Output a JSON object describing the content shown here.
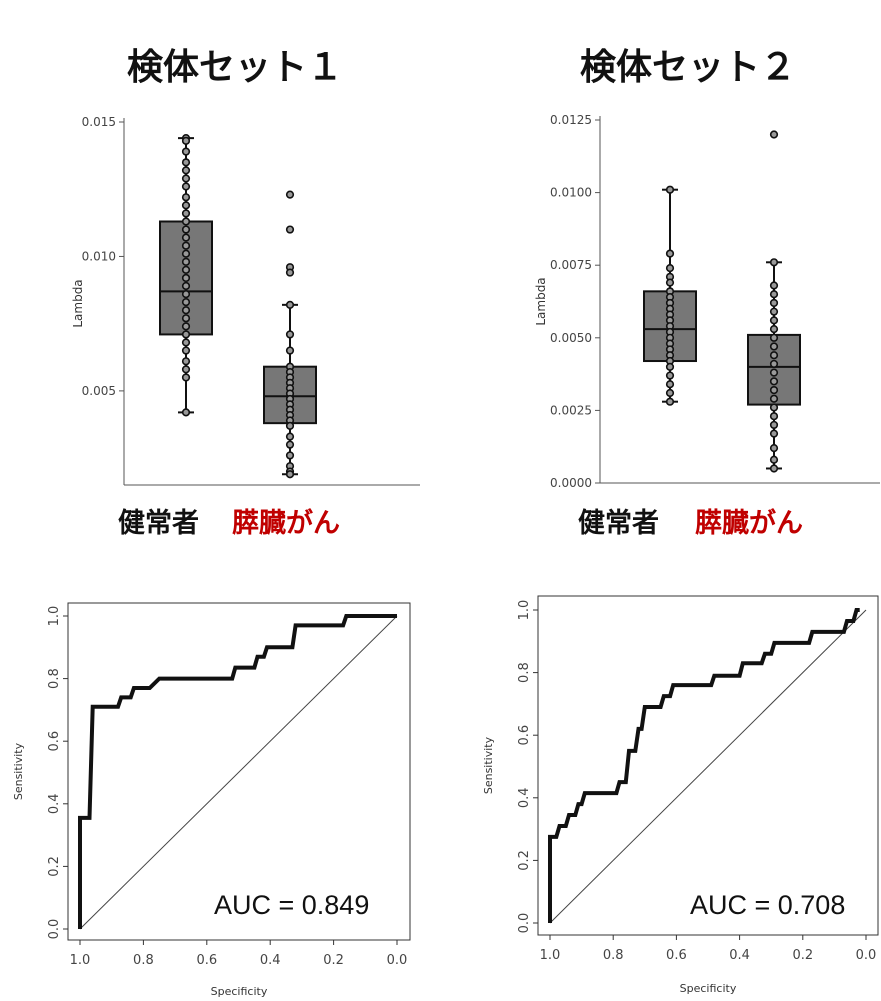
{
  "chart_data": [
    {
      "type": "box",
      "title": "検体セット１",
      "ylabel": "Lambda",
      "ylim": [
        0.0015,
        0.015
      ],
      "yticks": [
        "0.005",
        "0.010",
        "0.015"
      ],
      "ytick_values": [
        0.005,
        0.01,
        0.015
      ],
      "group_colors": {
        "normal": "#111111",
        "cancer": "#c00000"
      },
      "groups": [
        {
          "label": "健常者",
          "color": "#111111",
          "min": 0.0042,
          "q1": 0.0071,
          "median": 0.0087,
          "q3": 0.0113,
          "max": 0.0144,
          "points": [
            0.0144,
            0.0143,
            0.0139,
            0.0135,
            0.0132,
            0.0129,
            0.0126,
            0.0122,
            0.0119,
            0.0116,
            0.0113,
            0.011,
            0.0107,
            0.0104,
            0.0101,
            0.0098,
            0.0095,
            0.0092,
            0.0089,
            0.0086,
            0.0083,
            0.008,
            0.0077,
            0.0074,
            0.0071,
            0.0068,
            0.0065,
            0.0061,
            0.0058,
            0.0055,
            0.0042
          ]
        },
        {
          "label": "膵臓がん",
          "color": "#c00000",
          "min": 0.0019,
          "q1": 0.0038,
          "median": 0.0048,
          "q3": 0.0059,
          "max": 0.0082,
          "points": [
            0.0123,
            0.011,
            0.0096,
            0.0094,
            0.0082,
            0.0071,
            0.0065,
            0.0059,
            0.0057,
            0.0055,
            0.0053,
            0.0051,
            0.0049,
            0.0047,
            0.0045,
            0.0043,
            0.0041,
            0.0039,
            0.0037,
            0.0033,
            0.003,
            0.0026,
            0.0022,
            0.002,
            0.0019
          ]
        }
      ]
    },
    {
      "type": "box",
      "title": "検体セット２",
      "ylabel": "Lambda",
      "ylim": [
        0,
        0.0125
      ],
      "yticks": [
        "0.0000",
        "0.0025",
        "0.0050",
        "0.0075",
        "0.0100",
        "0.0125"
      ],
      "ytick_values": [
        0,
        0.0025,
        0.005,
        0.0075,
        0.01,
        0.0125
      ],
      "groups": [
        {
          "label": "健常者",
          "color": "#111111",
          "min": 0.0028,
          "q1": 0.0042,
          "median": 0.0053,
          "q3": 0.0066,
          "max": 0.0101,
          "points": [
            0.0101,
            0.0079,
            0.0074,
            0.0071,
            0.0069,
            0.0066,
            0.0064,
            0.0062,
            0.006,
            0.0058,
            0.0056,
            0.0054,
            0.0052,
            0.005,
            0.0048,
            0.0046,
            0.0044,
            0.0042,
            0.004,
            0.0037,
            0.0034,
            0.0031,
            0.0028
          ]
        },
        {
          "label": "膵臓がん",
          "color": "#c00000",
          "min": 0.0005,
          "q1": 0.0027,
          "median": 0.004,
          "q3": 0.0051,
          "max": 0.0076,
          "points": [
            0.012,
            0.0076,
            0.0068,
            0.0065,
            0.0062,
            0.0059,
            0.0056,
            0.0053,
            0.005,
            0.0047,
            0.0044,
            0.0041,
            0.0038,
            0.0035,
            0.0032,
            0.0029,
            0.0026,
            0.0023,
            0.002,
            0.0017,
            0.0012,
            0.0008,
            0.0005
          ]
        }
      ]
    },
    {
      "type": "line",
      "xlabel": "Specificity",
      "ylabel": "Sensitivity",
      "xlim": [
        1.0,
        0.0
      ],
      "ylim": [
        0.0,
        1.0
      ],
      "xticks": [
        "1.0",
        "0.8",
        "0.6",
        "0.4",
        "0.2",
        "0.0"
      ],
      "yticks": [
        "0.0",
        "0.2",
        "0.4",
        "0.6",
        "0.8",
        "1.0"
      ],
      "annotation": "AUC = 0.849",
      "roc": [
        [
          1.0,
          0.0
        ],
        [
          1.0,
          0.355
        ],
        [
          0.97,
          0.355
        ],
        [
          0.96,
          0.71
        ],
        [
          0.88,
          0.71
        ],
        [
          0.87,
          0.74
        ],
        [
          0.84,
          0.74
        ],
        [
          0.83,
          0.77
        ],
        [
          0.78,
          0.77
        ],
        [
          0.75,
          0.8
        ],
        [
          0.52,
          0.8
        ],
        [
          0.51,
          0.835
        ],
        [
          0.45,
          0.835
        ],
        [
          0.44,
          0.87
        ],
        [
          0.42,
          0.87
        ],
        [
          0.41,
          0.9
        ],
        [
          0.33,
          0.9
        ],
        [
          0.32,
          0.97
        ],
        [
          0.17,
          0.97
        ],
        [
          0.16,
          1.0
        ],
        [
          0.0,
          1.0
        ]
      ]
    },
    {
      "type": "line",
      "xlabel": "Specificity",
      "ylabel": "Sensitivity",
      "xlim": [
        1.0,
        0.0
      ],
      "ylim": [
        0.0,
        1.0
      ],
      "xticks": [
        "1.0",
        "0.8",
        "0.6",
        "0.4",
        "0.2",
        "0.0"
      ],
      "yticks": [
        "0.0",
        "0.2",
        "0.4",
        "0.6",
        "0.8",
        "1.0"
      ],
      "annotation": "AUC = 0.708",
      "roc": [
        [
          1.0,
          0.0
        ],
        [
          1.0,
          0.275
        ],
        [
          0.98,
          0.275
        ],
        [
          0.97,
          0.31
        ],
        [
          0.95,
          0.31
        ],
        [
          0.94,
          0.345
        ],
        [
          0.92,
          0.345
        ],
        [
          0.91,
          0.38
        ],
        [
          0.9,
          0.38
        ],
        [
          0.89,
          0.415
        ],
        [
          0.79,
          0.415
        ],
        [
          0.78,
          0.45
        ],
        [
          0.76,
          0.45
        ],
        [
          0.75,
          0.55
        ],
        [
          0.73,
          0.55
        ],
        [
          0.72,
          0.62
        ],
        [
          0.71,
          0.62
        ],
        [
          0.7,
          0.69
        ],
        [
          0.65,
          0.69
        ],
        [
          0.64,
          0.725
        ],
        [
          0.62,
          0.725
        ],
        [
          0.61,
          0.76
        ],
        [
          0.49,
          0.76
        ],
        [
          0.48,
          0.79
        ],
        [
          0.4,
          0.79
        ],
        [
          0.39,
          0.83
        ],
        [
          0.33,
          0.83
        ],
        [
          0.32,
          0.86
        ],
        [
          0.3,
          0.86
        ],
        [
          0.29,
          0.895
        ],
        [
          0.18,
          0.895
        ],
        [
          0.17,
          0.93
        ],
        [
          0.07,
          0.93
        ],
        [
          0.06,
          0.965
        ],
        [
          0.04,
          0.965
        ],
        [
          0.03,
          1.0
        ],
        [
          0.02,
          1.0
        ]
      ]
    }
  ]
}
